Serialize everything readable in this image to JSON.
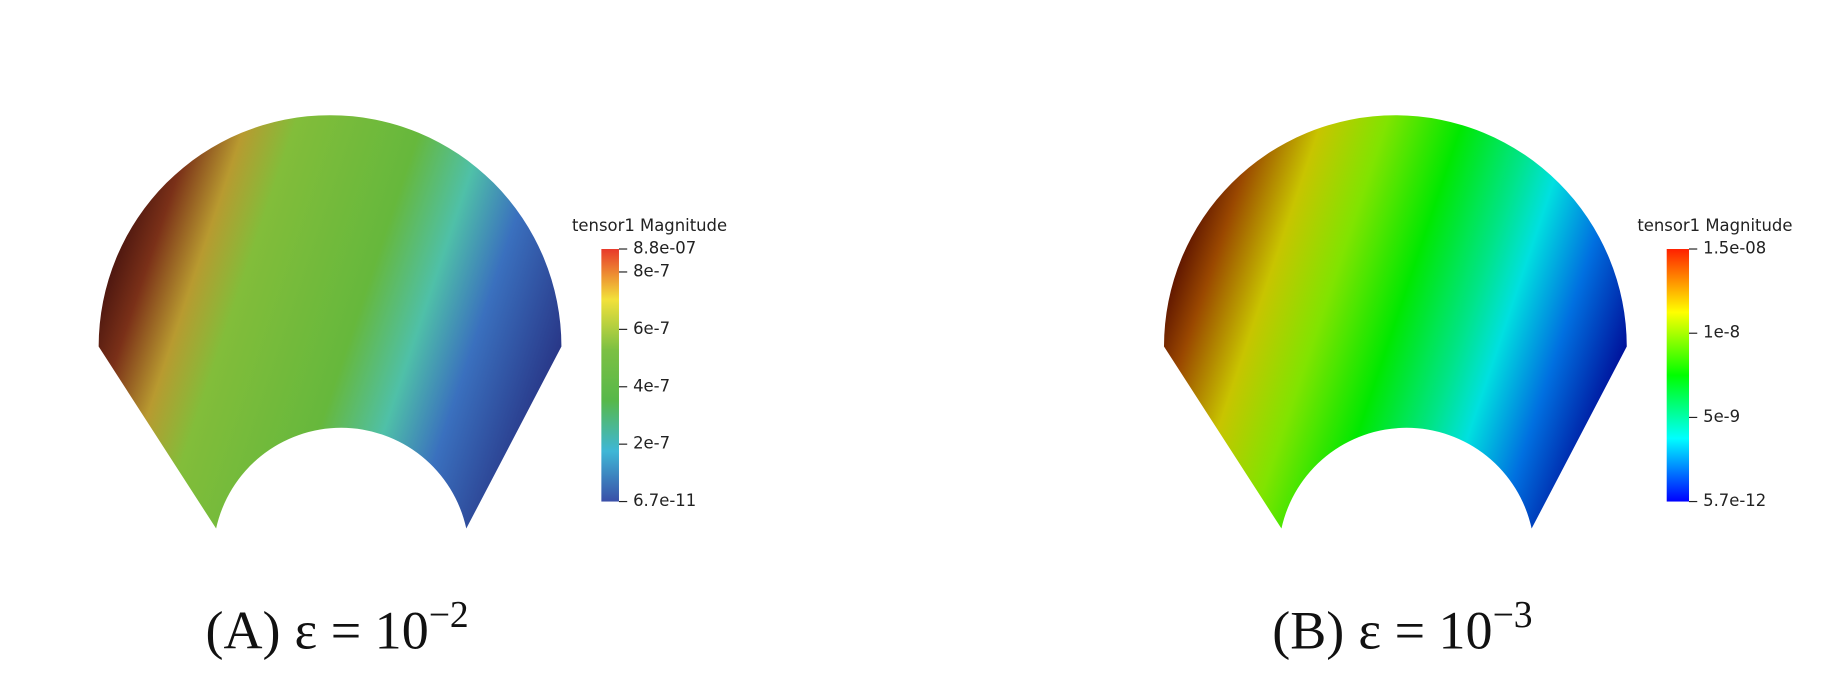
{
  "chart_data": [
    {
      "type": "colorfield",
      "colorbar_title": "tensor1 Magnitude",
      "clim": [
        6.7e-11,
        8.8e-07
      ],
      "cticks": [
        {
          "value": 6.7e-11,
          "label": "6.7e-11"
        },
        {
          "value": 2e-07,
          "label": "2e-7"
        },
        {
          "value": 4e-07,
          "label": "4e-7"
        },
        {
          "value": 6e-07,
          "label": "6e-7"
        },
        {
          "value": 8e-07,
          "label": "8e-7"
        },
        {
          "value": 8.8e-07,
          "label": "8.8e-07"
        }
      ],
      "colormap": [
        "#3a4fa8",
        "#3fb7d6",
        "#57b84a",
        "#7cc043",
        "#f2e13a",
        "#e8392a"
      ],
      "caption_label": "(A)",
      "caption_text": "ε = 10",
      "caption_exponent": "−2"
    },
    {
      "type": "colorfield",
      "colorbar_title": "tensor1 Magnitude",
      "clim": [
        5.7e-12,
        1.5e-08
      ],
      "cticks": [
        {
          "value": 5.7e-12,
          "label": "5.7e-12"
        },
        {
          "value": 5e-09,
          "label": "5e-9"
        },
        {
          "value": 1e-08,
          "label": "1e-8"
        },
        {
          "value": 1.5e-08,
          "label": "1.5e-08"
        }
      ],
      "colormap": [
        "#0000ff",
        "#00ffff",
        "#00ff00",
        "#ffff00",
        "#ff2000"
      ],
      "caption_label": "(B)",
      "caption_text": "ε = 10",
      "caption_exponent": "−3"
    }
  ]
}
